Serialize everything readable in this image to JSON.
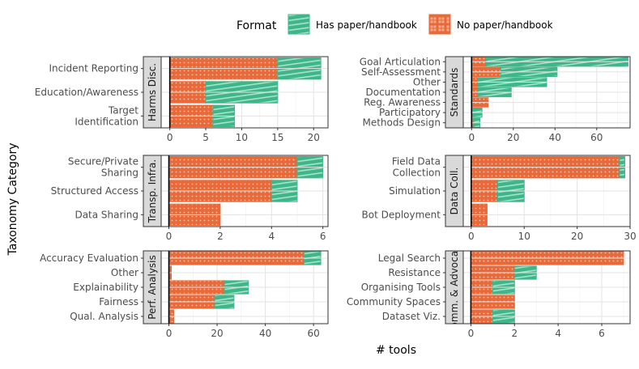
{
  "chart_data": {
    "type": "bar",
    "orientation": "horizontal",
    "stacked": true,
    "xlabel": "# tools",
    "ylabel": "Taxonomy Category",
    "legend": {
      "title": "Format",
      "position": "top",
      "entries": [
        {
          "name": "Has paper/handbook",
          "color": "#3fb68a",
          "pattern": "stripes"
        },
        {
          "name": "No paper/handbook",
          "color": "#e86a3a",
          "pattern": "grid"
        }
      ]
    },
    "panels": [
      {
        "strip": "Harms Disc.",
        "xlim": [
          -1.2,
          22
        ],
        "xticks": [
          0,
          5,
          10,
          15,
          20
        ],
        "categories": [
          {
            "label": [
              "Target",
              "Identification"
            ],
            "no_paper": 6,
            "has_paper": 3
          },
          {
            "label": [
              "Education/Awareness"
            ],
            "no_paper": 5,
            "has_paper": 10
          },
          {
            "label": [
              "Incident Reporting"
            ],
            "no_paper": 15,
            "has_paper": 6
          }
        ]
      },
      {
        "strip": "Standards",
        "xlim": [
          -4,
          76
        ],
        "xticks": [
          0,
          20,
          40,
          60
        ],
        "categories": [
          {
            "label": [
              "Methods Design"
            ],
            "no_paper": 1,
            "has_paper": 3
          },
          {
            "label": [
              "Participatory"
            ],
            "no_paper": 0,
            "has_paper": 5
          },
          {
            "label": [
              "Reg. Awareness"
            ],
            "no_paper": 8,
            "has_paper": 0
          },
          {
            "label": [
              "Documentation"
            ],
            "no_paper": 3,
            "has_paper": 16
          },
          {
            "label": [
              "Other"
            ],
            "no_paper": 3,
            "has_paper": 33
          },
          {
            "label": [
              "Self-Assessment"
            ],
            "no_paper": 14,
            "has_paper": 27
          },
          {
            "label": [
              "Goal Articulation"
            ],
            "no_paper": 7,
            "has_paper": 68
          }
        ]
      },
      {
        "strip": "Transp. Infra.",
        "xlim": [
          -0.3,
          6.2
        ],
        "xticks": [
          0,
          2,
          4,
          6
        ],
        "categories": [
          {
            "label": [
              "Data Sharing"
            ],
            "no_paper": 2,
            "has_paper": 0
          },
          {
            "label": [
              "Structured Access"
            ],
            "no_paper": 4,
            "has_paper": 1
          },
          {
            "label": [
              "Secure/Private",
              "Sharing"
            ],
            "no_paper": 5,
            "has_paper": 1
          }
        ]
      },
      {
        "strip": "Data Coll.",
        "xlim": [
          -1.5,
          30
        ],
        "xticks": [
          0,
          10,
          20,
          30
        ],
        "categories": [
          {
            "label": [
              "Bot Deployment"
            ],
            "no_paper": 3,
            "has_paper": 0
          },
          {
            "label": [
              "Simulation"
            ],
            "no_paper": 5,
            "has_paper": 5
          },
          {
            "label": [
              "Field Data",
              "Collection"
            ],
            "no_paper": 28,
            "has_paper": 1
          }
        ]
      },
      {
        "strip": "Perf. Analysis",
        "xlim": [
          -3.2,
          66
        ],
        "xticks": [
          0,
          20,
          40,
          60
        ],
        "categories": [
          {
            "label": [
              "Qual. Analysis"
            ],
            "no_paper": 2,
            "has_paper": 0
          },
          {
            "label": [
              "Fairness"
            ],
            "no_paper": 19,
            "has_paper": 8
          },
          {
            "label": [
              "Explainability"
            ],
            "no_paper": 23,
            "has_paper": 10
          },
          {
            "label": [
              "Other"
            ],
            "no_paper": 1,
            "has_paper": 0
          },
          {
            "label": [
              "Accuracy Evaluation"
            ],
            "no_paper": 56,
            "has_paper": 7
          }
        ]
      },
      {
        "strip": "Comm. & Advocacy",
        "xlim": [
          -0.35,
          7.3
        ],
        "xticks": [
          0,
          2,
          4,
          6
        ],
        "categories": [
          {
            "label": [
              "Dataset Viz."
            ],
            "no_paper": 1,
            "has_paper": 1
          },
          {
            "label": [
              "Community Spaces"
            ],
            "no_paper": 2,
            "has_paper": 0
          },
          {
            "label": [
              "Organising Tools"
            ],
            "no_paper": 1,
            "has_paper": 1
          },
          {
            "label": [
              "Resistance"
            ],
            "no_paper": 2,
            "has_paper": 1
          },
          {
            "label": [
              "Legal Search"
            ],
            "no_paper": 7,
            "has_paper": 0
          }
        ]
      }
    ]
  }
}
